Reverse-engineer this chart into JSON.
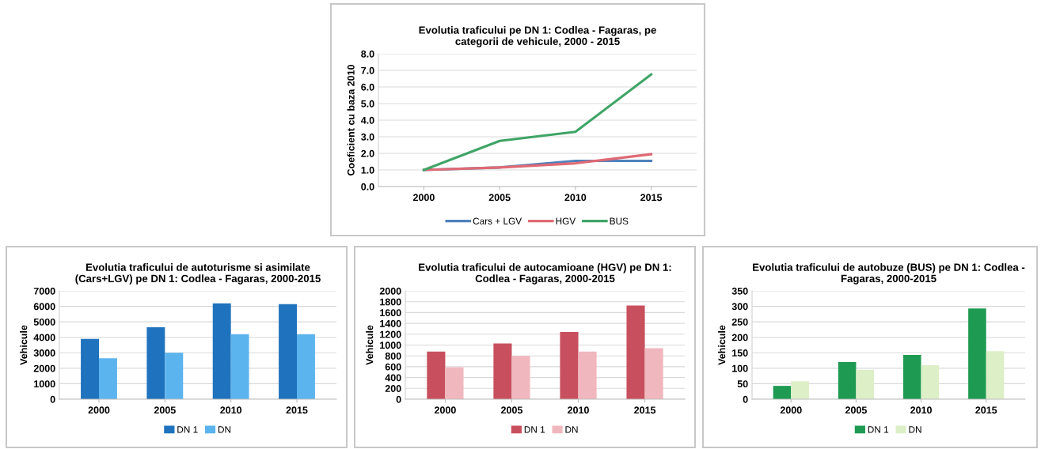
{
  "chart_data": [
    {
      "type": "line",
      "title": "Evolutia traficului pe DN 1: Codlea - Fagaras, pe\ncategorii de vehicule, 2000 - 2015",
      "ylabel": "Coeficient cu baza 2010",
      "categories": [
        "2000",
        "2005",
        "2010",
        "2015"
      ],
      "ylim": [
        0,
        8
      ],
      "yticks": [
        {
          "value": 0,
          "label": "0.0"
        },
        {
          "value": 1,
          "label": "1.0"
        },
        {
          "value": 2,
          "label": "2.0"
        },
        {
          "value": 3,
          "label": "3.0"
        },
        {
          "value": 4,
          "label": "4.0"
        },
        {
          "value": 5,
          "label": "5.0"
        },
        {
          "value": 6,
          "label": "6.0"
        },
        {
          "value": 7,
          "label": "7.0"
        },
        {
          "value": 8,
          "label": "8.0"
        }
      ],
      "grid": "y",
      "legend": "bottom",
      "marker": "none",
      "line_style": "solid",
      "series": [
        {
          "name": "Cars + LGV",
          "color": "#4f81bd",
          "values": [
            1.0,
            1.15,
            1.55,
            1.55
          ]
        },
        {
          "name": "HGV",
          "color": "#e06a74",
          "values": [
            1.0,
            1.15,
            1.4,
            1.95
          ]
        },
        {
          "name": "BUS",
          "color": "#3fa466",
          "values": [
            1.0,
            2.75,
            3.3,
            6.75
          ]
        }
      ]
    },
    {
      "type": "bar",
      "title": "Evolutia traficului de autoturisme si asimilate\n(Cars+LGV) pe DN 1: Codlea - Fagaras, 2000-2015",
      "ylabel": "Vehicule",
      "categories": [
        "2000",
        "2005",
        "2010",
        "2015"
      ],
      "ylim": [
        0,
        7000
      ],
      "yticks": [
        0,
        1000,
        2000,
        3000,
        4000,
        5000,
        6000,
        7000
      ],
      "grid": "y",
      "legend": "bottom",
      "series": [
        {
          "name": "DN 1",
          "color": "#1f72bd",
          "values": [
            3900,
            4650,
            6200,
            6150
          ]
        },
        {
          "name": "DN",
          "color": "#5cb4ee",
          "values": [
            2650,
            3000,
            4200,
            4200
          ]
        }
      ]
    },
    {
      "type": "bar",
      "title": "Evolutia traficului de autocamioane (HGV) pe DN 1:\nCodlea - Fagaras, 2000-2015",
      "ylabel": "Vehicule",
      "categories": [
        "2000",
        "2005",
        "2010",
        "2015"
      ],
      "ylim": [
        0,
        2000
      ],
      "yticks": [
        0,
        200,
        400,
        600,
        800,
        1000,
        1200,
        1400,
        1600,
        1800,
        2000
      ],
      "grid": "y",
      "legend": "bottom",
      "series": [
        {
          "name": "DN 1",
          "color": "#c8505e",
          "values": [
            880,
            1030,
            1240,
            1730
          ]
        },
        {
          "name": "DN",
          "color": "#f0b8be",
          "values": [
            590,
            800,
            880,
            940
          ]
        }
      ]
    },
    {
      "type": "bar",
      "title": "Evolutia traficului de autobuze (BUS) pe DN 1: Codlea -\nFagaras, 2000-2015",
      "ylabel": "Vehicule",
      "categories": [
        "2000",
        "2005",
        "2010",
        "2015"
      ],
      "ylim": [
        0,
        350
      ],
      "yticks": [
        0,
        50,
        100,
        150,
        200,
        250,
        300,
        350
      ],
      "grid": "y",
      "legend": "bottom",
      "series": [
        {
          "name": "DN 1",
          "color": "#1e9a52",
          "values": [
            43,
            120,
            143,
            293
          ]
        },
        {
          "name": "DN",
          "color": "#dcefc6",
          "values": [
            58,
            95,
            110,
            155
          ]
        }
      ]
    }
  ]
}
